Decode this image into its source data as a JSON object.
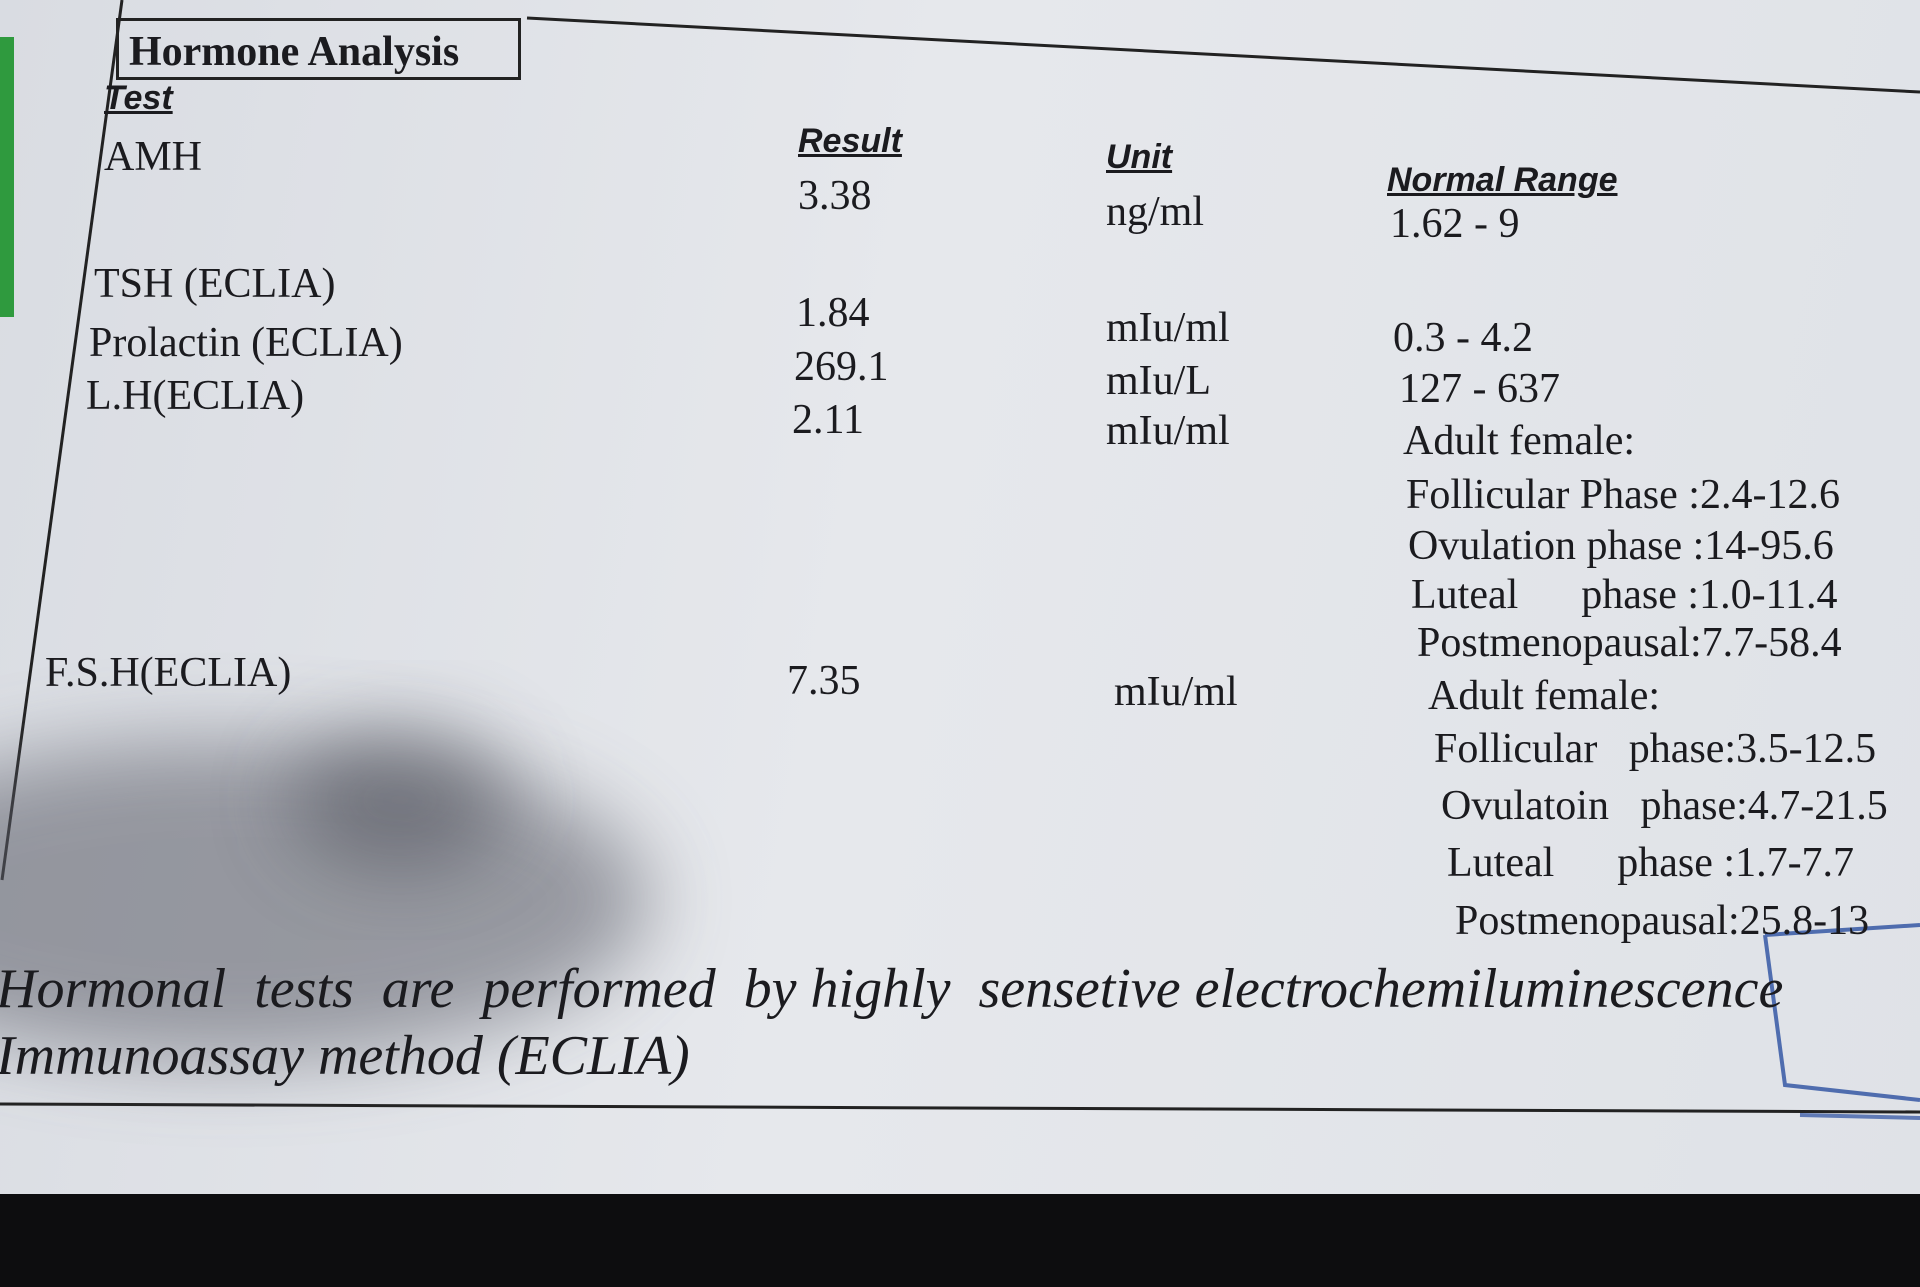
{
  "header": {
    "title": "Hormone Analysis"
  },
  "table": {
    "columns": [
      "Test",
      "Result",
      "Unit",
      "Normal Range"
    ],
    "rows": [
      {
        "test": "AMH",
        "result": "3.38",
        "unit": "ng/ml",
        "range": [
          "1.62 - 9"
        ]
      },
      {
        "test": "TSH (ECLIA)",
        "result": "1.84",
        "unit": "mIu/ml",
        "range": [
          "0.3 - 4.2"
        ]
      },
      {
        "test": "Prolactin (ECLIA)",
        "result": "269.1",
        "unit": "mIu/L",
        "range": [
          "127 - 637"
        ]
      },
      {
        "test": "L.H(ECLIA)",
        "result": "2.11",
        "unit": "mIu/ml",
        "range": [
          "Adult female:",
          "Follicular Phase :2.4-12.6",
          "Ovulation phase :14-95.6",
          "Luteal      phase :1.0-11.4",
          "Postmenopausal:7.7-58.4"
        ]
      },
      {
        "test": "F.S.H(ECLIA)",
        "result": "7.35",
        "unit": "mIu/ml",
        "range": [
          "Adult female:",
          "Follicular   phase:3.5-12.5",
          "Ovulatoin   phase:4.7-21.5",
          "Luteal      phase :1.7-7.7",
          "Postmenopausal:25.8-13"
        ]
      }
    ]
  },
  "footer": {
    "lines": [
      "Hormonal  tests  are  performed  by highly  sensetive electrochemiluminescence",
      "Immunoassay method (ECLIA)"
    ]
  }
}
